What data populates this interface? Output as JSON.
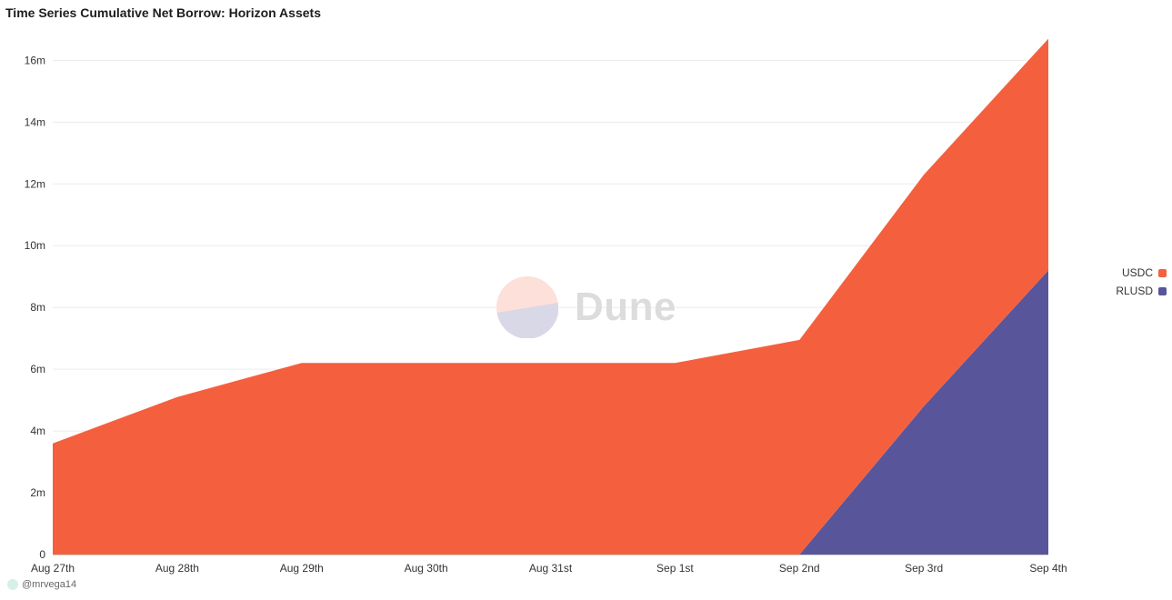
{
  "title": "Time Series Cumulative Net Borrow: Horizon Assets",
  "watermark": {
    "text": "Dune"
  },
  "credit": {
    "handle": "@mrvega14"
  },
  "legend": [
    {
      "label": "USDC",
      "color": "#f4603e"
    },
    {
      "label": "RLUSD",
      "color": "#58559a"
    }
  ],
  "chart_data": {
    "type": "area",
    "stacked": true,
    "title": "Time Series Cumulative Net Borrow: Horizon Assets",
    "x": [
      "Aug 27th",
      "Aug 28th",
      "Aug 29th",
      "Aug 30th",
      "Aug 31st",
      "Sep 1st",
      "Sep 2nd",
      "Sep 3rd",
      "Sep 4th"
    ],
    "series": [
      {
        "name": "RLUSD",
        "color": "#58559a",
        "values": [
          0,
          0,
          0,
          0,
          0,
          0,
          0,
          4.8,
          9.2
        ]
      },
      {
        "name": "USDC",
        "color": "#f4603e",
        "values": [
          3.6,
          5.1,
          6.2,
          6.2,
          6.2,
          6.2,
          6.95,
          7.5,
          7.5
        ]
      }
    ],
    "ylim": [
      0,
      16.6
    ],
    "yticks": [
      0,
      2,
      4,
      6,
      8,
      10,
      12,
      14,
      16
    ],
    "ytick_labels": [
      "0",
      "2m",
      "4m",
      "6m",
      "8m",
      "10m",
      "12m",
      "14m",
      "16m"
    ],
    "grid": true,
    "legend_position": "right"
  }
}
